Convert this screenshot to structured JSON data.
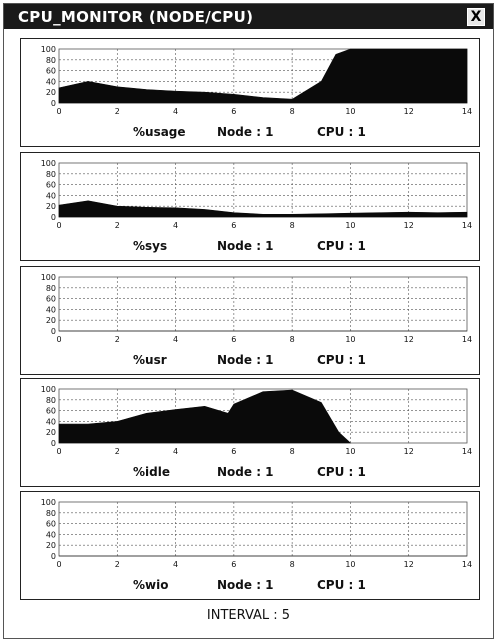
{
  "window": {
    "title": "CPU_MONITOR (NODE/CPU)",
    "close_label": "X"
  },
  "footer": {
    "interval_label": "INTERVAL : 5"
  },
  "colors": {
    "fill": "#0a0a0a",
    "grid": "#555555",
    "background": "#ffffff"
  },
  "charts": [
    {
      "id": "usage",
      "metric_label": "%usage",
      "node_label": "Node : 1",
      "cpu_label": "CPU : 1"
    },
    {
      "id": "sys",
      "metric_label": "%sys",
      "node_label": "Node : 1",
      "cpu_label": "CPU : 1"
    },
    {
      "id": "usr",
      "metric_label": "%usr",
      "node_label": "Node : 1",
      "cpu_label": "CPU : 1"
    },
    {
      "id": "idle",
      "metric_label": "%idle",
      "node_label": "Node : 1",
      "cpu_label": "CPU : 1"
    },
    {
      "id": "wio",
      "metric_label": "%wio",
      "node_label": "Node : 1",
      "cpu_label": "CPU : 1"
    }
  ],
  "chart_data": [
    {
      "type": "area",
      "title": "%usage",
      "x": [
        0,
        1,
        2,
        3,
        4,
        5,
        6,
        7,
        8,
        9,
        9.5,
        10,
        11,
        12,
        13,
        14
      ],
      "series": [
        {
          "name": "%usage",
          "values": [
            28,
            40,
            30,
            25,
            22,
            20,
            16,
            10,
            7,
            40,
            90,
            100,
            100,
            100,
            100,
            100
          ]
        }
      ],
      "xticks": [
        "0",
        "2",
        "4",
        "6",
        "8",
        "10",
        "12",
        "14"
      ],
      "yticks": [
        "100",
        "80",
        "60",
        "40",
        "20",
        "0"
      ],
      "xlim": [
        0,
        14
      ],
      "ylim": [
        0,
        100
      ]
    },
    {
      "type": "area",
      "title": "%sys",
      "x": [
        0,
        1,
        2,
        3,
        4,
        5,
        6,
        7,
        8,
        9,
        10,
        11,
        12,
        13,
        14
      ],
      "series": [
        {
          "name": "%sys",
          "values": [
            22,
            30,
            20,
            18,
            17,
            14,
            8,
            5,
            5,
            6,
            7,
            8,
            9,
            8,
            9
          ]
        }
      ],
      "xticks": [
        "0",
        "2",
        "4",
        "6",
        "8",
        "10",
        "12",
        "14"
      ],
      "yticks": [
        "100",
        "80",
        "60",
        "40",
        "20",
        "0"
      ],
      "xlim": [
        0,
        14
      ],
      "ylim": [
        0,
        100
      ]
    },
    {
      "type": "area",
      "title": "%usr",
      "x": [
        0,
        14
      ],
      "series": [
        {
          "name": "%usr",
          "values": [
            0,
            0
          ]
        }
      ],
      "xticks": [
        "0",
        "2",
        "4",
        "6",
        "8",
        "10",
        "12",
        "14"
      ],
      "yticks": [
        "100",
        "80",
        "60",
        "40",
        "20",
        "0"
      ],
      "xlim": [
        0,
        14
      ],
      "ylim": [
        0,
        100
      ]
    },
    {
      "type": "area",
      "title": "%idle",
      "x": [
        0,
        1,
        2,
        3,
        4,
        5,
        5.8,
        6,
        7,
        8,
        9,
        9.6,
        10
      ],
      "series": [
        {
          "name": "%idle",
          "values": [
            35,
            35,
            40,
            55,
            62,
            68,
            55,
            72,
            95,
            98,
            75,
            20,
            0
          ]
        }
      ],
      "xticks": [
        "0",
        "2",
        "4",
        "6",
        "8",
        "10",
        "12",
        "14"
      ],
      "yticks": [
        "100",
        "80",
        "60",
        "40",
        "20",
        "0"
      ],
      "xlim": [
        0,
        14
      ],
      "ylim": [
        0,
        100
      ]
    },
    {
      "type": "area",
      "title": "%wio",
      "x": [
        0,
        14
      ],
      "series": [
        {
          "name": "%wio",
          "values": [
            0,
            0
          ]
        }
      ],
      "xticks": [
        "0",
        "2",
        "4",
        "6",
        "8",
        "10",
        "12",
        "14"
      ],
      "yticks": [
        "100",
        "80",
        "60",
        "40",
        "20",
        "0"
      ],
      "xlim": [
        0,
        14
      ],
      "ylim": [
        0,
        100
      ]
    }
  ]
}
